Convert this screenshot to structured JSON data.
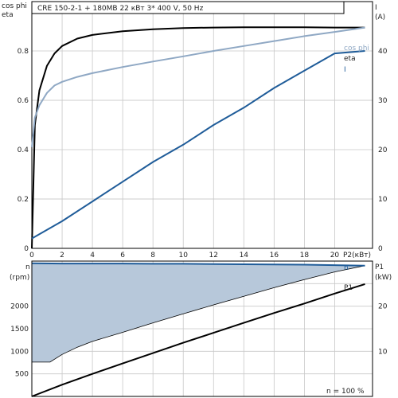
{
  "header": {
    "title": "CRE 150-2-1 + 180MB    22 кВт   3* 400 V, 50 Hz"
  },
  "upper_axes": {
    "left_label_top": "cos phi",
    "left_label_bottom": "eta",
    "right_label_top": "I",
    "right_label_bottom": "(A)",
    "x_label": "P2(кВт)"
  },
  "lower_axes": {
    "left_label_top": "n",
    "left_label_bottom": "(rpm)",
    "right_label_top": "P1",
    "right_label_bottom": "(kW)",
    "footnote": "n  = 100 %"
  },
  "legend": {
    "cos_phi": "cos phi",
    "eta": "eta",
    "current": "I",
    "speed": "n",
    "power": "P1"
  },
  "colors": {
    "eta": "#000000",
    "cos_phi": "#8fa8c4",
    "current": "#1f5c99",
    "speed_line": "#1f5c99",
    "speed_fill": "#b7c8da",
    "power": "#000000"
  },
  "chart_data": [
    {
      "type": "line",
      "title": "CRE 150-2-1 + 180MB    22 кВт   3* 400 V, 50 Hz",
      "xlabel": "P2(кВт)",
      "ylabel": "cos phi / eta",
      "y2label": "I (A)",
      "xlim": [
        0,
        22.5
      ],
      "ylim": [
        0,
        1.0
      ],
      "y2lim": [
        0,
        50
      ],
      "xticks": [
        0,
        2,
        4,
        6,
        8,
        10,
        12,
        14,
        16,
        18,
        20
      ],
      "yticks": [
        0,
        0.2,
        0.4,
        0.6,
        0.8
      ],
      "y2ticks": [
        0,
        10,
        20,
        30,
        40
      ],
      "grid": true,
      "series": [
        {
          "name": "eta",
          "axis": "left",
          "x": [
            0,
            0.2,
            0.5,
            1,
            1.5,
            2,
            3,
            4,
            6,
            8,
            10,
            12,
            14,
            16,
            18,
            20,
            22
          ],
          "y": [
            0,
            0.5,
            0.64,
            0.74,
            0.79,
            0.82,
            0.85,
            0.865,
            0.88,
            0.888,
            0.893,
            0.895,
            0.896,
            0.896,
            0.896,
            0.895,
            0.895
          ]
        },
        {
          "name": "cos phi",
          "axis": "left",
          "x": [
            0,
            0.2,
            0.5,
            1,
            1.5,
            2,
            3,
            4,
            6,
            8,
            10,
            12,
            14,
            16,
            18,
            20,
            22
          ],
          "y": [
            0.41,
            0.53,
            0.58,
            0.63,
            0.66,
            0.675,
            0.695,
            0.71,
            0.735,
            0.757,
            0.778,
            0.8,
            0.82,
            0.84,
            0.86,
            0.877,
            0.895
          ]
        },
        {
          "name": "I",
          "axis": "right",
          "x": [
            0,
            2,
            4,
            6,
            8,
            10,
            12,
            14,
            16,
            18,
            20,
            22
          ],
          "y": [
            2,
            5.5,
            9.5,
            13.5,
            17.5,
            21,
            25,
            28.5,
            32.5,
            36,
            39.5,
            40
          ]
        }
      ]
    },
    {
      "type": "line",
      "ylabel": "n (rpm)",
      "y2label": "P1 (kW)",
      "xlim": [
        0,
        22.5
      ],
      "ylim": [
        0,
        3000
      ],
      "y2lim": [
        0,
        30
      ],
      "yticks": [
        500,
        1000,
        1500,
        2000
      ],
      "y2ticks": [
        10,
        20
      ],
      "grid": true,
      "footnote": "n  = 100 %",
      "series": [
        {
          "name": "n",
          "axis": "left",
          "x": [
            0,
            2,
            4,
            6,
            8,
            10,
            12,
            14,
            16,
            18,
            20,
            22
          ],
          "y": [
            2950,
            2945,
            2945,
            2945,
            2940,
            2940,
            2935,
            2930,
            2925,
            2920,
            2910,
            2900
          ]
        },
        {
          "name": "n min",
          "axis": "left",
          "fill_between": "n",
          "x": [
            0,
            1.2,
            2,
            3,
            4,
            6,
            8,
            10,
            12,
            14,
            16,
            18,
            20,
            22
          ],
          "y": [
            760,
            760,
            930,
            1090,
            1220,
            1420,
            1630,
            1830,
            2030,
            2220,
            2410,
            2590,
            2760,
            2900
          ]
        },
        {
          "name": "P1",
          "axis": "right",
          "x": [
            0,
            2,
            4,
            6,
            8,
            10,
            12,
            14,
            16,
            18,
            20,
            22
          ],
          "y": [
            0,
            2.6,
            5.0,
            7.3,
            9.6,
            11.9,
            14.1,
            16.3,
            18.5,
            20.6,
            22.8,
            24.9
          ]
        }
      ]
    }
  ]
}
